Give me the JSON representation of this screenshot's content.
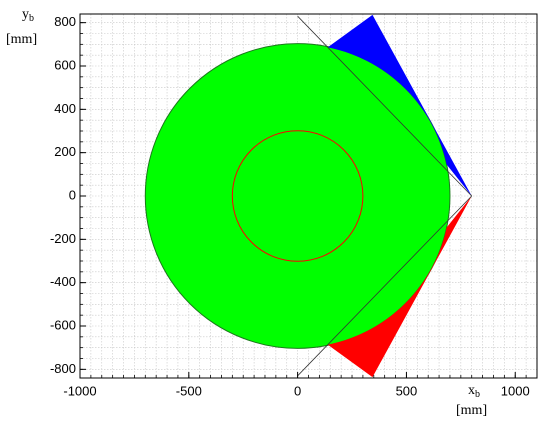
{
  "chart_data": {
    "type": "shapes",
    "xlim": [
      -1000,
      1100
    ],
    "ylim": [
      -840,
      840
    ],
    "xticks": [
      -1000,
      -500,
      0,
      500,
      1000
    ],
    "yticks": [
      -800,
      -600,
      -400,
      -200,
      0,
      200,
      400,
      600,
      800
    ],
    "minor_step": 50,
    "grid": true,
    "x_label": {
      "main": "x",
      "sub": "b",
      "unit": "[mm]"
    },
    "y_label": {
      "main": "y",
      "sub": "b",
      "unit": "[mm]"
    },
    "circles": [
      {
        "r": 700,
        "fill": "#00ff00",
        "stroke": "#1a7a1a"
      },
      {
        "r": 300,
        "fill": "none",
        "stroke": "#ff0000"
      }
    ],
    "polygons": [
      {
        "color": "#0000ff",
        "points": [
          [
            800,
            0
          ],
          [
            344,
            836
          ],
          [
            138,
            686
          ]
        ],
        "arc": {
          "r": 700,
          "from": 78.6,
          "to": 12
        }
      },
      {
        "color": "#ff0000",
        "points": [
          [
            800,
            0
          ],
          [
            344,
            -836
          ],
          [
            138,
            -686
          ]
        ],
        "arc": {
          "r": 700,
          "from": -78.6,
          "to": -12
        }
      }
    ],
    "lines": [
      [
        [
          0,
          830
        ],
        [
          800,
          0
        ]
      ],
      [
        [
          0,
          -830
        ],
        [
          800,
          0
        ]
      ]
    ]
  }
}
